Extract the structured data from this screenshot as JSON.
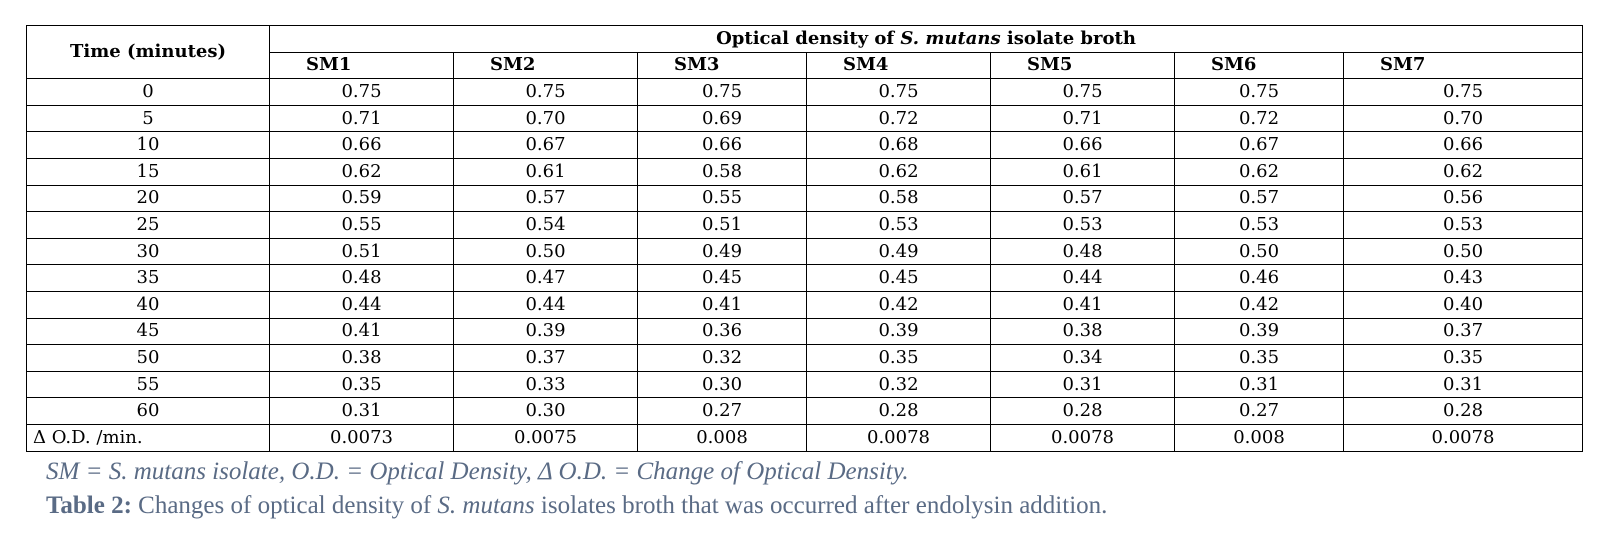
{
  "table": {
    "time_header": "Time (minutes)",
    "group_header": {
      "prefix": "Optical density of ",
      "species": "S. mutans",
      "suffix": " isolate broth"
    },
    "isolates": [
      "SM1",
      "SM2",
      "SM3",
      "SM4",
      "SM5",
      "SM6",
      "SM7"
    ],
    "rows": [
      {
        "time": "0",
        "values": [
          "0.75",
          "0.75",
          "0.75",
          "0.75",
          "0.75",
          "0.75",
          "0.75"
        ]
      },
      {
        "time": "5",
        "values": [
          "0.71",
          "0.70",
          "0.69",
          "0.72",
          "0.71",
          "0.72",
          "0.70"
        ]
      },
      {
        "time": "10",
        "values": [
          "0.66",
          "0.67",
          "0.66",
          "0.68",
          "0.66",
          "0.67",
          "0.66"
        ]
      },
      {
        "time": "15",
        "values": [
          "0.62",
          "0.61",
          "0.58",
          "0.62",
          "0.61",
          "0.62",
          "0.62"
        ]
      },
      {
        "time": "20",
        "values": [
          "0.59",
          "0.57",
          "0.55",
          "0.58",
          "0.57",
          "0.57",
          "0.56"
        ]
      },
      {
        "time": "25",
        "values": [
          "0.55",
          "0.54",
          "0.51",
          "0.53",
          "0.53",
          "0.53",
          "0.53"
        ]
      },
      {
        "time": "30",
        "values": [
          "0.51",
          "0.50",
          "0.49",
          "0.49",
          "0.48",
          "0.50",
          "0.50"
        ]
      },
      {
        "time": "35",
        "values": [
          "0.48",
          "0.47",
          "0.45",
          "0.45",
          "0.44",
          "0.46",
          "0.43"
        ]
      },
      {
        "time": "40",
        "values": [
          "0.44",
          "0.44",
          "0.41",
          "0.42",
          "0.41",
          "0.42",
          "0.40"
        ]
      },
      {
        "time": "45",
        "values": [
          "0.41",
          "0.39",
          "0.36",
          "0.39",
          "0.38",
          "0.39",
          "0.37"
        ]
      },
      {
        "time": "50",
        "values": [
          "0.38",
          "0.37",
          "0.32",
          "0.35",
          "0.34",
          "0.35",
          "0.35"
        ]
      },
      {
        "time": "55",
        "values": [
          "0.35",
          "0.33",
          "0.30",
          "0.32",
          "0.31",
          "0.31",
          "0.31"
        ]
      },
      {
        "time": "60",
        "values": [
          "0.31",
          "0.30",
          "0.27",
          "0.28",
          "0.28",
          "0.27",
          "0.28"
        ]
      }
    ],
    "delta_row": {
      "label": "Δ O.D. /min.",
      "values": [
        "0.0073",
        "0.0075",
        "0.008",
        "0.0078",
        "0.0078",
        "0.008",
        "0.0078"
      ]
    }
  },
  "footnote": "SM = S. mutans isolate, O.D. = Optical Density, Δ O.D. = Change of Optical Density.",
  "caption": {
    "label": "Table 2:",
    "text_before": " Changes of optical density of ",
    "species": "S. mutans",
    "text_after": " isolates broth that was occurred after endolysin addition."
  },
  "colors": {
    "caption_text": "#5a6b85",
    "table_text": "#000000",
    "border": "#000000"
  }
}
